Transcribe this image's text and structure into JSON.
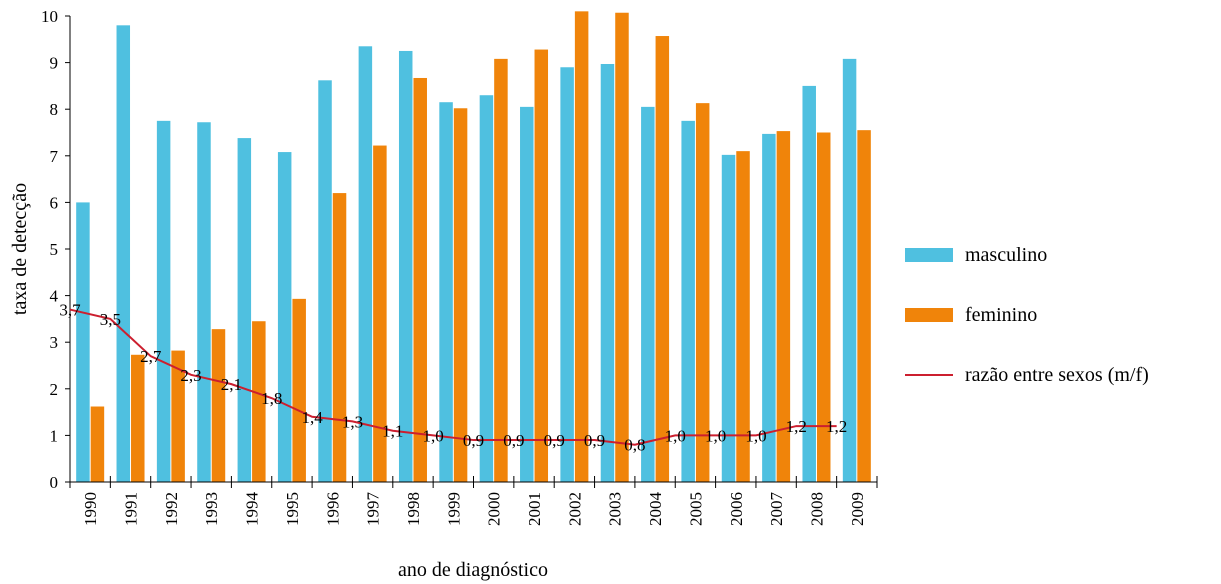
{
  "chart_data": {
    "type": "bar",
    "xlabel": "ano de diagnóstico",
    "ylabel": "taxa de detecção",
    "ylim": [
      0,
      10
    ],
    "yticks": [
      0,
      1,
      2,
      3,
      4,
      5,
      6,
      7,
      8,
      9,
      10
    ],
    "categories": [
      "1990",
      "1991",
      "1992",
      "1993",
      "1994",
      "1995",
      "1996",
      "1997",
      "1998",
      "1999",
      "2000",
      "2001",
      "2002",
      "2003",
      "2004",
      "2005",
      "2006",
      "2007",
      "2008",
      "2009"
    ],
    "series": [
      {
        "name": "masculino",
        "kind": "bar",
        "color": "#4fc0e0",
        "values": [
          6.0,
          9.8,
          7.75,
          7.72,
          7.38,
          7.08,
          8.62,
          9.35,
          9.25,
          8.15,
          8.3,
          8.05,
          8.9,
          8.97,
          8.05,
          7.75,
          7.02,
          7.47,
          8.5,
          9.08
        ]
      },
      {
        "name": "feminino",
        "kind": "bar",
        "color": "#f0840a",
        "values": [
          1.62,
          2.73,
          2.82,
          3.28,
          3.45,
          3.93,
          6.2,
          7.22,
          8.67,
          8.02,
          9.08,
          9.28,
          10.1,
          10.07,
          9.57,
          8.13,
          7.1,
          7.53,
          7.5,
          7.55
        ]
      },
      {
        "name": "razão entre sexos (m/f)",
        "kind": "line",
        "color": "#cc1f2f",
        "values": [
          3.7,
          3.5,
          2.7,
          2.3,
          2.1,
          1.8,
          1.4,
          1.3,
          1.1,
          1.0,
          0.9,
          0.9,
          0.9,
          0.9,
          0.8,
          1.0,
          1.0,
          1.0,
          1.2,
          1.2
        ],
        "labels": [
          "3,7",
          "3,5",
          "2,7",
          "2,3",
          "2,1",
          "1,8",
          "1,4",
          "1,3",
          "1,1",
          "1,0",
          "0,9",
          "0,9",
          "0,9",
          "0,9",
          "0,8",
          "1,0",
          "1,0",
          "1,0",
          "1,2",
          "1,2"
        ]
      }
    ],
    "legend_position": "right",
    "grid": false
  }
}
